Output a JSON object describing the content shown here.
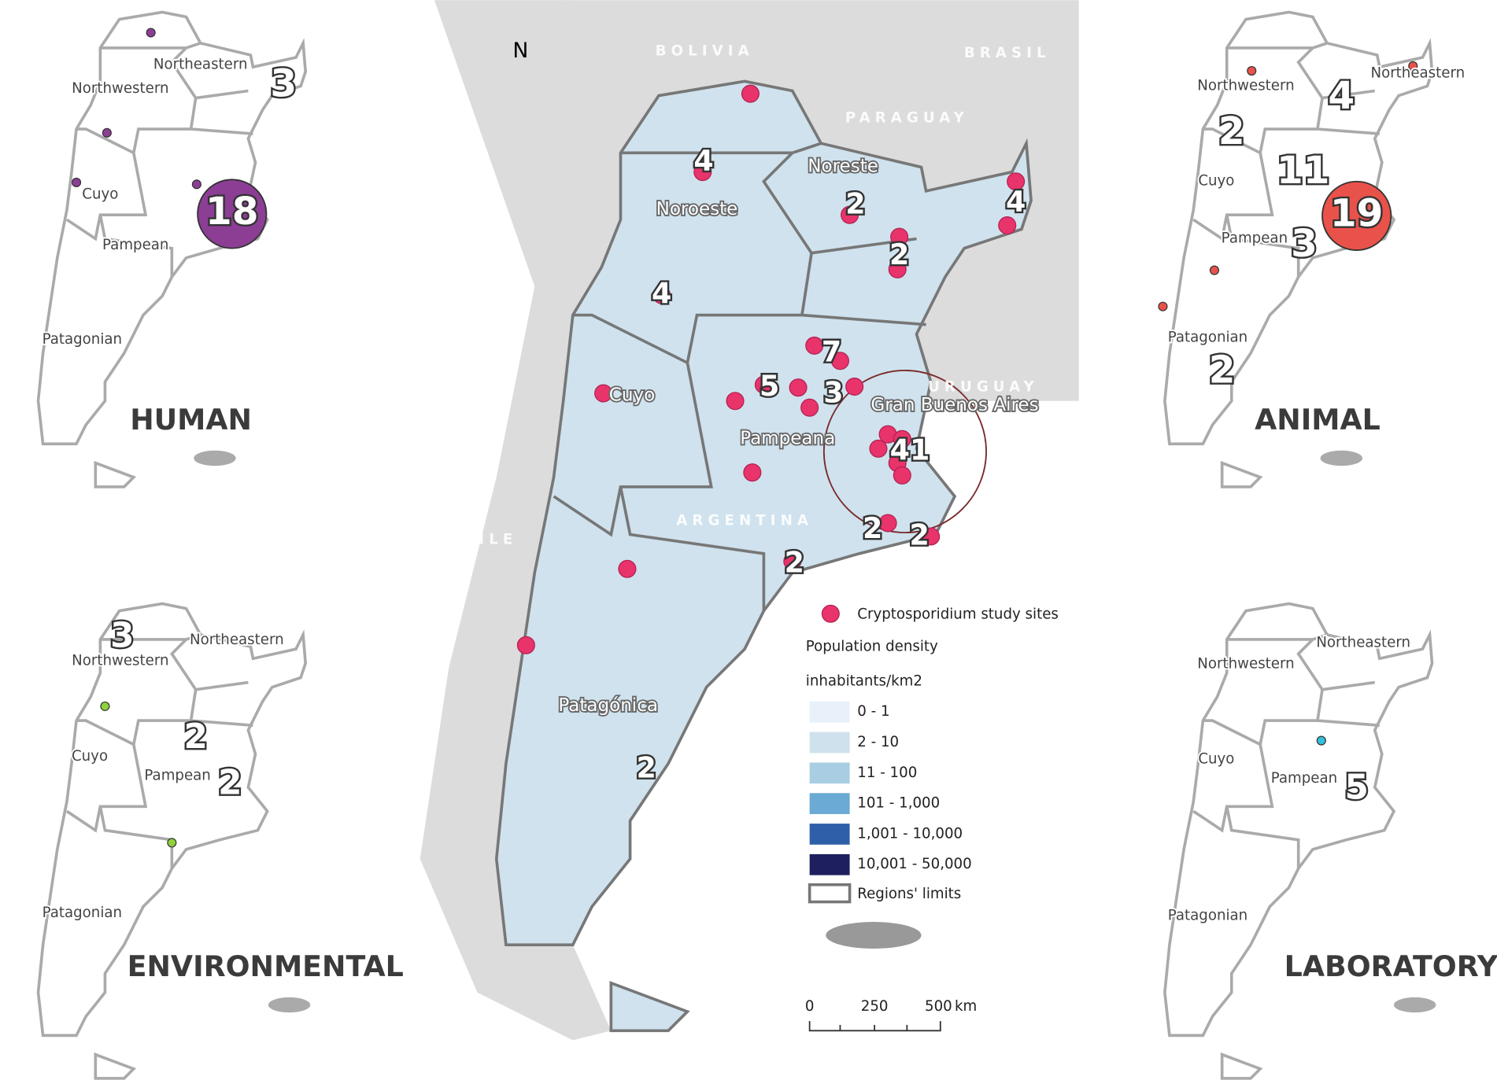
{
  "main_map": {
    "north_arrow": "N",
    "countries": [
      "BOLIVIA",
      "BRASIL",
      "PARAGUAY",
      "URUGUAY",
      "CHILE",
      "ARGENTINA"
    ],
    "regions": [
      "Noroeste",
      "Noreste",
      "Cuyo",
      "Pampeana",
      "Patagónica",
      "Gran Buenos Aires"
    ],
    "site_counts": [
      4,
      2,
      4,
      2,
      4,
      7,
      5,
      3,
      41,
      2,
      2,
      2,
      2
    ]
  },
  "legend": {
    "sites": "Cryptosporidium study sites",
    "title": "Population density",
    "unit": "inhabitants/km2",
    "classes": [
      "0 - 1",
      "2 - 10",
      "11 - 100",
      "101 - 1,000",
      "1,001 - 10,000",
      "10,001 - 50,000"
    ],
    "limits": "Regions' limits"
  },
  "scale_bar": {
    "ticks": [
      0,
      250,
      500
    ],
    "unit": "km"
  },
  "panels": [
    {
      "title": "HUMAN",
      "regions": [
        "Northeastern",
        "Northwestern",
        "Cuyo",
        "Pampean",
        "Patagonian"
      ],
      "counts": [
        3,
        18
      ]
    },
    {
      "title": "ANIMAL",
      "regions": [
        "Northeastern",
        "Northwestern",
        "Cuyo",
        "Pampean",
        "Patagonian"
      ],
      "counts": [
        4,
        2,
        11,
        19,
        3,
        2
      ]
    },
    {
      "title": "ENVIRONMENTAL",
      "regions": [
        "Northeastern",
        "Northwestern",
        "Cuyo",
        "Pampean",
        "Patagonian"
      ],
      "counts": [
        3,
        2,
        2
      ]
    },
    {
      "title": "LABORATORY",
      "regions": [
        "Northeastern",
        "Northwestern",
        "Cuyo",
        "Pampean",
        "Patagonian"
      ],
      "counts": [
        5
      ]
    }
  ]
}
